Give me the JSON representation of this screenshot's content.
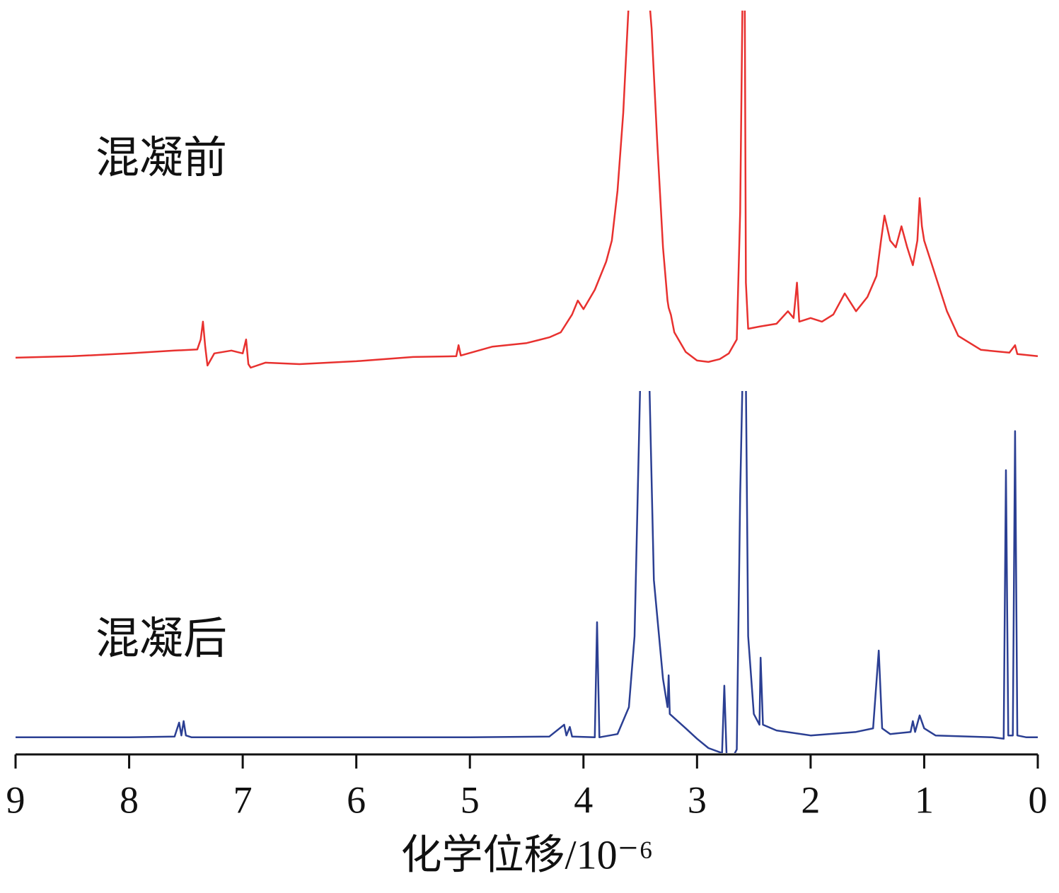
{
  "chart_data": [
    {
      "type": "line",
      "annotation": "混凝前",
      "xlim": [
        9,
        0
      ],
      "ylim": [
        0,
        100
      ],
      "x": [
        9.0,
        8.5,
        8.0,
        7.6,
        7.4,
        7.37,
        7.35,
        7.33,
        7.31,
        7.25,
        7.1,
        7.0,
        6.97,
        6.95,
        6.93,
        6.8,
        6.5,
        6.0,
        5.5,
        5.12,
        5.1,
        5.08,
        4.8,
        4.5,
        4.3,
        4.2,
        4.1,
        4.05,
        4.0,
        3.9,
        3.8,
        3.75,
        3.7,
        3.65,
        3.6,
        3.5,
        3.42,
        3.4,
        3.35,
        3.3,
        3.26,
        3.25,
        3.23,
        3.2,
        3.1,
        3.0,
        2.9,
        2.8,
        2.72,
        2.65,
        2.62,
        2.6,
        2.58,
        2.57,
        2.55,
        2.45,
        2.3,
        2.2,
        2.15,
        2.12,
        2.1,
        2.0,
        1.9,
        1.8,
        1.7,
        1.6,
        1.5,
        1.42,
        1.38,
        1.35,
        1.3,
        1.25,
        1.2,
        1.15,
        1.1,
        1.06,
        1.04,
        1.02,
        1.0,
        0.9,
        0.8,
        0.7,
        0.5,
        0.25,
        0.2,
        0.18,
        0.0
      ],
      "series": [
        {
          "color": "#e8312f",
          "values": [
            2.8,
            3.2,
            4.0,
            4.8,
            5.1,
            7.9,
            12.9,
            5.9,
            0.6,
            4.0,
            4.8,
            4.0,
            7.9,
            1.0,
            0.0,
            1.4,
            1.0,
            1.8,
            3.0,
            3.2,
            6.3,
            3.4,
            5.9,
            6.9,
            8.5,
            9.9,
            14.9,
            18.8,
            16.4,
            21.8,
            29.7,
            35.6,
            49.5,
            71.3,
            103,
            103,
            103,
            95,
            63,
            33.7,
            18.8,
            16.8,
            14.8,
            9.9,
            4.4,
            2.0,
            1.6,
            2.4,
            4.0,
            7.9,
            43.6,
            103,
            103,
            23.8,
            10.9,
            11.5,
            12.3,
            15.8,
            13.9,
            23.8,
            12.9,
            13.9,
            12.9,
            14.9,
            20.8,
            15.8,
            19.8,
            25.7,
            35.6,
            42.6,
            35.6,
            33.7,
            39.6,
            33.7,
            28.7,
            35.6,
            47.5,
            39.6,
            35.6,
            25.7,
            15.8,
            8.9,
            5.0,
            4.2,
            6.3,
            3.8,
            3.2
          ]
        }
      ]
    },
    {
      "type": "line",
      "annotation": "混凝后",
      "xlim": [
        9,
        0
      ],
      "ylim": [
        0,
        100
      ],
      "xticks": [
        9,
        8,
        7,
        6,
        5,
        4,
        3,
        2,
        1,
        0
      ],
      "xlabel": "化学位移/10⁻⁶",
      "x": [
        9.0,
        8.0,
        7.6,
        7.56,
        7.54,
        7.52,
        7.5,
        7.45,
        6.0,
        5.0,
        4.3,
        4.17,
        4.15,
        4.12,
        4.1,
        3.9,
        3.88,
        3.86,
        3.7,
        3.6,
        3.55,
        3.5,
        3.42,
        3.38,
        3.3,
        3.26,
        3.25,
        3.24,
        3.1,
        3.0,
        2.9,
        2.78,
        2.76,
        2.74,
        2.7,
        2.65,
        2.62,
        2.6,
        2.57,
        2.55,
        2.5,
        2.45,
        2.44,
        2.42,
        2.3,
        2.0,
        1.6,
        1.45,
        1.4,
        1.37,
        1.3,
        1.12,
        1.1,
        1.08,
        1.04,
        1.0,
        0.9,
        0.4,
        0.3,
        0.28,
        0.26,
        0.22,
        0.2,
        0.18,
        0.1,
        0.0
      ],
      "series": [
        {
          "color": "#2b3f93",
          "values": [
            3.4,
            3.4,
            3.6,
            7.5,
            3.9,
            7.9,
            3.9,
            3.4,
            3.4,
            3.4,
            3.6,
            6.9,
            3.9,
            6.3,
            3.6,
            3.4,
            35.5,
            3.4,
            4.3,
            11.8,
            31.6,
            103,
            103,
            47.3,
            19.7,
            11.8,
            20.7,
            9.9,
            5.9,
            3.0,
            0.4,
            -1.0,
            17.8,
            -1.6,
            -3.0,
            0.0,
            71.0,
            103,
            103,
            31.6,
            9.9,
            6.9,
            25.6,
            6.9,
            5.3,
            3.9,
            4.9,
            5.9,
            27.6,
            5.9,
            4.3,
            4.9,
            7.9,
            4.9,
            9.5,
            5.9,
            3.9,
            3.4,
            3.0,
            77.9,
            3.9,
            3.9,
            88.8,
            3.9,
            3.4,
            3.4
          ]
        }
      ]
    }
  ]
}
